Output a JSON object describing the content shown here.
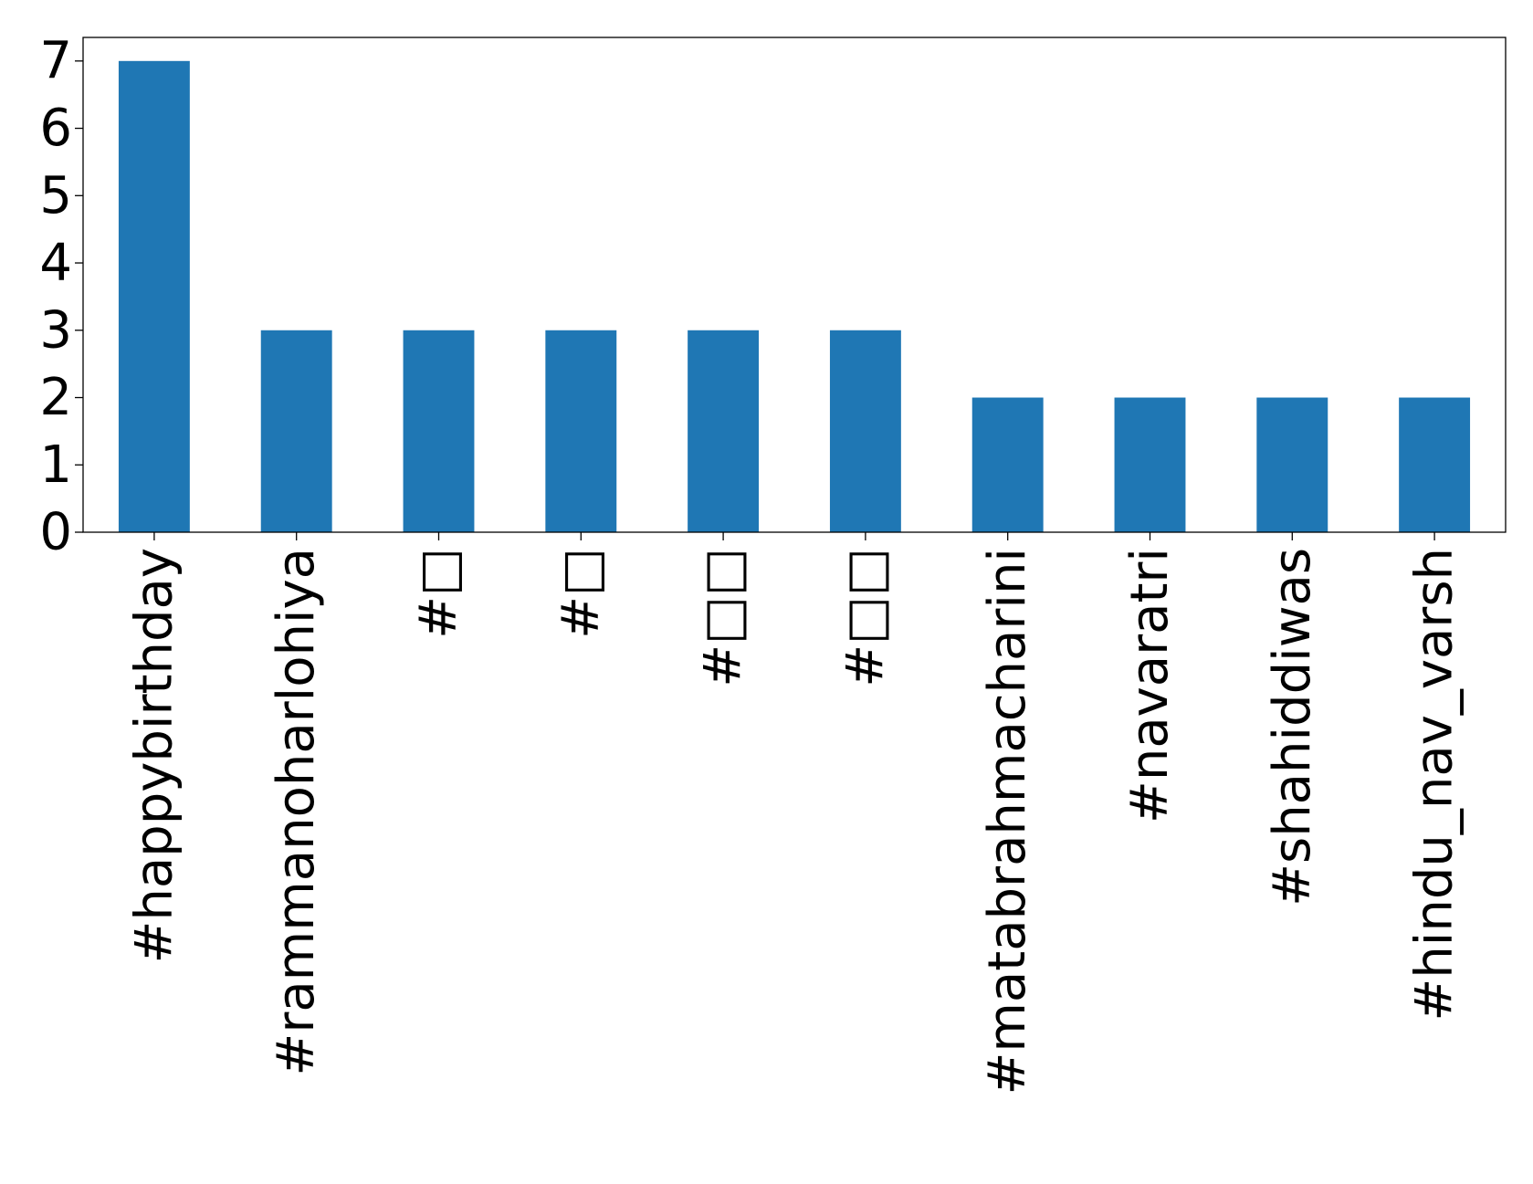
{
  "chart_data": {
    "type": "bar",
    "title": "",
    "xlabel": "",
    "ylabel": "",
    "categories": [
      "#happybirthday",
      "#rammanoharlohiya",
      "#□",
      "#□",
      "#□□",
      "#□□",
      "#matabrahmacharini",
      "#navaratri",
      "#shahiddiwas",
      "#hindu_nav_varsh"
    ],
    "values": [
      7,
      3,
      3,
      3,
      3,
      3,
      2,
      2,
      2,
      2
    ],
    "ylim": [
      0,
      7.35
    ],
    "yticks": [
      0,
      1,
      2,
      3,
      4,
      5,
      6,
      7
    ],
    "grid": false,
    "legend": "none",
    "bar_color": "#1f77b4"
  }
}
